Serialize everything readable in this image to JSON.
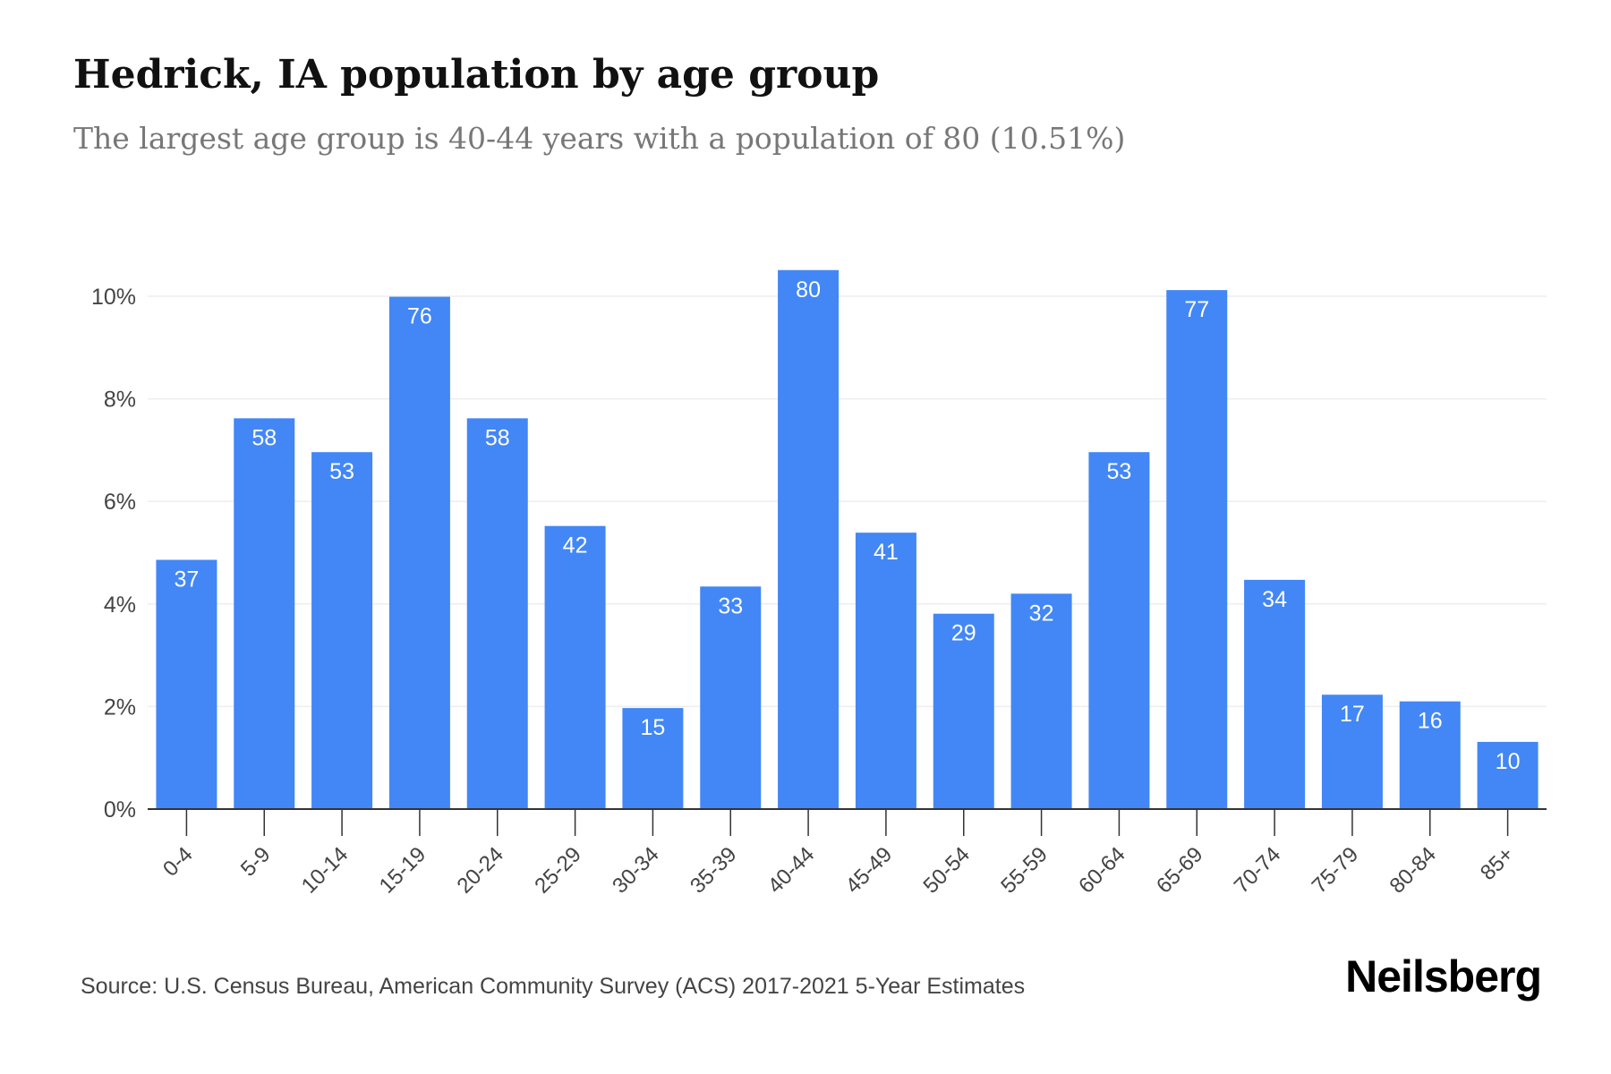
{
  "title": "Hedrick, IA population by age group",
  "subtitle": "The largest age group is 40-44 years with a population of 80 (10.51%)",
  "source": "Source: U.S. Census Bureau, American Community Survey (ACS) 2017-2021 5-Year Estimates",
  "brand": "Neilsberg",
  "colors": {
    "bar": "#4287f5",
    "bar_label": "#ffffff",
    "grid": "#eeeeee",
    "axis": "#333333",
    "tick_text": "#444444"
  },
  "chart_data": {
    "type": "bar",
    "title": "Hedrick, IA population by age group",
    "subtitle": "The largest age group is 40-44 years with a population of 80 (10.51%)",
    "categories": [
      "0-4",
      "5-9",
      "10-14",
      "15-19",
      "20-24",
      "25-29",
      "30-34",
      "35-39",
      "40-44",
      "45-49",
      "50-54",
      "55-59",
      "60-64",
      "65-69",
      "70-74",
      "75-79",
      "80-84",
      "85+"
    ],
    "values": [
      37,
      58,
      53,
      76,
      58,
      42,
      15,
      33,
      80,
      41,
      29,
      32,
      53,
      77,
      34,
      17,
      16,
      10
    ],
    "percent": [
      4.86,
      7.62,
      6.96,
      9.99,
      7.62,
      5.52,
      1.97,
      4.34,
      10.51,
      5.39,
      3.81,
      4.2,
      6.96,
      10.12,
      4.47,
      2.23,
      2.1,
      1.31
    ],
    "y_ticks": [
      "0%",
      "2%",
      "4%",
      "6%",
      "8%",
      "10%"
    ],
    "y_tick_values": [
      0,
      2,
      4,
      6,
      8,
      10
    ],
    "ylim": [
      0,
      12
    ],
    "xlabel": "",
    "ylabel": "",
    "grid": true,
    "legend": "none"
  }
}
